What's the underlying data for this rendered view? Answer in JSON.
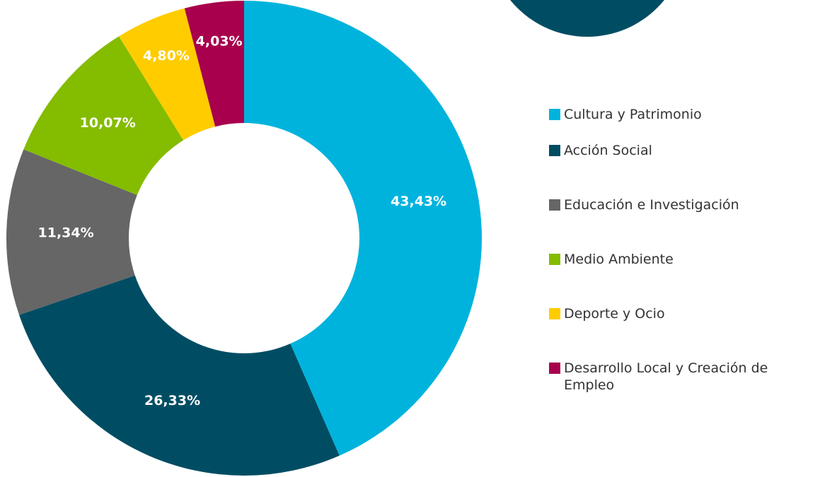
{
  "chart_data": {
    "type": "pie",
    "categories": [
      "Cultura y Patrimonio",
      "Acción Social",
      "Educación e Investigación",
      "Medio Ambiente",
      "Deporte y Ocio",
      "Desarrollo Local y Creación de Empleo"
    ],
    "values": [
      43.43,
      26.33,
      11.34,
      10.07,
      4.8,
      4.03
    ],
    "value_labels": [
      "43,43%",
      "26,33%",
      "11,34%",
      "10,07%",
      "4,80%",
      "4,03%"
    ],
    "colors": [
      "#00b3dd",
      "#004d63",
      "#666666",
      "#84bc00",
      "#ffcc00",
      "#a8004d"
    ],
    "legend": "right"
  }
}
